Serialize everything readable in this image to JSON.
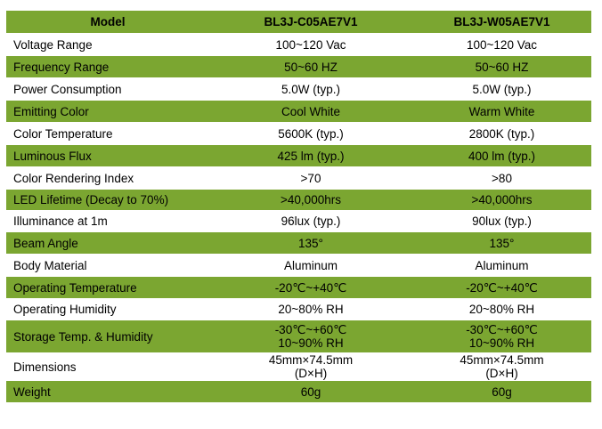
{
  "table": {
    "header": {
      "label": "Model",
      "col1": "BL3J-C05AE7V1",
      "col2": "BL3J-W05AE7V1"
    },
    "rows": [
      {
        "label": "Voltage Range",
        "v1": [
          "100~120 Vac"
        ],
        "v2": [
          "100~120 Vac"
        ]
      },
      {
        "label": "Frequency Range",
        "v1": [
          "50~60 HZ"
        ],
        "v2": [
          "50~60 HZ"
        ]
      },
      {
        "label": "Power Consumption",
        "v1": [
          "5.0W (typ.)"
        ],
        "v2": [
          "5.0W (typ.)"
        ]
      },
      {
        "label": "Emitting Color",
        "v1": [
          "Cool White"
        ],
        "v2": [
          "Warm White"
        ]
      },
      {
        "label": "Color Temperature",
        "v1": [
          "5600K (typ.)"
        ],
        "v2": [
          "2800K (typ.)"
        ]
      },
      {
        "label": "Luminous Flux",
        "v1": [
          "425 lm (typ.)"
        ],
        "v2": [
          "400 lm (typ.)"
        ]
      },
      {
        "label": "Color Rendering Index",
        "v1": [
          ">70"
        ],
        "v2": [
          ">80"
        ]
      },
      {
        "label": "LED Lifetime (Decay to 70%)",
        "v1": [
          ">40,000hrs"
        ],
        "v2": [
          ">40,000hrs"
        ]
      },
      {
        "label": "Illuminance at 1m",
        "v1": [
          "96lux (typ.)"
        ],
        "v2": [
          "90lux (typ.)"
        ]
      },
      {
        "label": "Beam Angle",
        "v1": [
          "135°"
        ],
        "v2": [
          "135°"
        ]
      },
      {
        "label": "Body Material",
        "v1": [
          "Aluminum"
        ],
        "v2": [
          "Aluminum"
        ]
      },
      {
        "label": "Operating Temperature",
        "v1": [
          "-20℃~+40℃"
        ],
        "v2": [
          "-20℃~+40℃"
        ]
      },
      {
        "label": "Operating Humidity",
        "v1": [
          "20~80% RH"
        ],
        "v2": [
          "20~80% RH"
        ]
      },
      {
        "label": "Storage Temp. & Humidity",
        "v1": [
          "-30℃~+60℃",
          "10~90% RH"
        ],
        "v2": [
          "-30℃~+60℃",
          "10~90% RH"
        ]
      },
      {
        "label": "Dimensions",
        "v1": [
          "45mm×74.5mm",
          "(D×H)"
        ],
        "v2": [
          "45mm×74.5mm",
          "(D×H)"
        ]
      },
      {
        "label": "Weight",
        "v1": [
          "60g"
        ],
        "v2": [
          "60g"
        ]
      }
    ]
  },
  "colors": {
    "row_green": "#7ba631",
    "row_white": "#ffffff",
    "text": "#000000"
  }
}
